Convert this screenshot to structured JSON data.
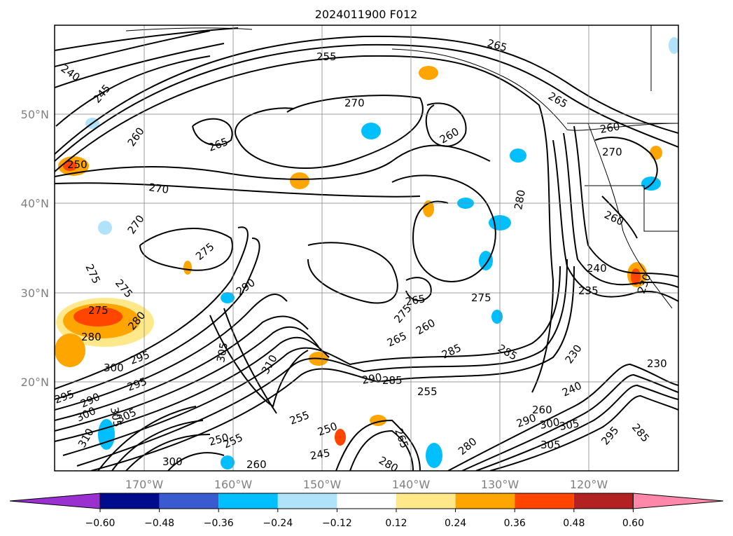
{
  "title": "2024011900 F012",
  "lat_labels": [
    "50°N",
    "40°N",
    "30°N",
    "20°N"
  ],
  "lon_labels": [
    "170°W",
    "160°W",
    "150°W",
    "140°W",
    "130°W",
    "120°W"
  ],
  "colorbar": {
    "ticks": [
      "−0.60",
      "−0.48",
      "−0.36",
      "−0.24",
      "−0.12",
      "0.12",
      "0.24",
      "0.36",
      "0.48",
      "0.60"
    ],
    "colors": [
      "#9b30d0",
      "#000c8b",
      "#3a5bd0",
      "#00bfff",
      "#b0e2fa",
      "#ffffff",
      "#ffe88a",
      "#ffa500",
      "#ff4500",
      "#b22222",
      "#ff88aa"
    ]
  },
  "chart_data": {
    "type": "heatmap",
    "title": "2024011900 F012",
    "x_ticks": [
      "170°W",
      "160°W",
      "150°W",
      "140°W",
      "130°W",
      "120°W"
    ],
    "y_ticks": [
      "50°N",
      "40°N",
      "30°N",
      "20°N"
    ],
    "contour_labels": [
      "240",
      "245",
      "250",
      "255",
      "260",
      "265",
      "270",
      "275",
      "280",
      "285",
      "290",
      "295",
      "300",
      "305",
      "310",
      "230",
      "235"
    ],
    "colorbar_levels": [
      -0.6,
      -0.48,
      -0.36,
      -0.24,
      -0.12,
      0.12,
      0.24,
      0.36,
      0.48,
      0.6
    ]
  }
}
